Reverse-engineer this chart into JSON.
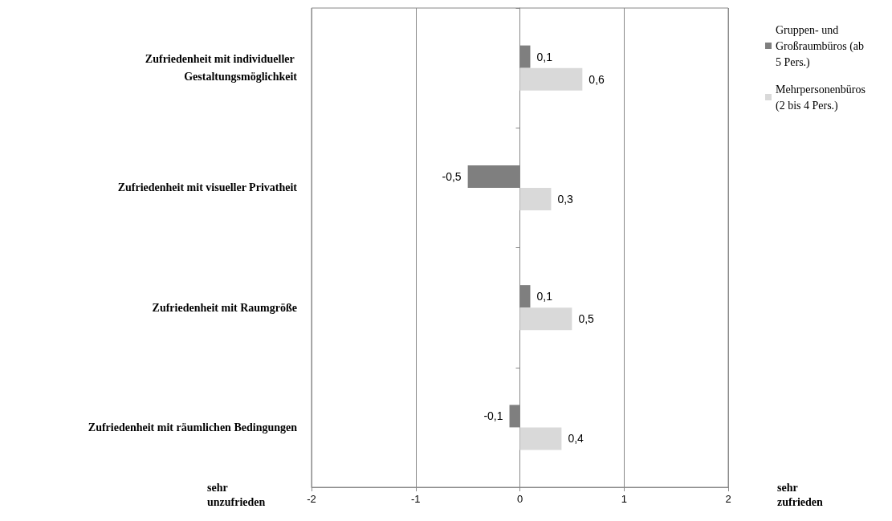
{
  "chart_data": {
    "type": "bar",
    "orientation": "horizontal",
    "categories": [
      "Zufriedenheit mit individueller Gestaltungsmöglichkeit",
      "Zufriedenheit mit visueller Privatheit",
      "Zufriedenheit mit Raumgröße",
      "Zufriedenheit mit räumlichen Bedingungen"
    ],
    "series": [
      {
        "name": "Gruppen- und Großraumbüros (ab 5 Pers.)",
        "color": "#7f7f7f",
        "values": [
          0.1,
          -0.5,
          0.1,
          -0.1
        ],
        "value_labels": [
          "0,1",
          "-0,5",
          "0,1",
          "-0,1"
        ]
      },
      {
        "name": "Mehrpersonenbüros (2 bis 4 Pers.)",
        "color": "#d9d9d9",
        "values": [
          0.6,
          0.3,
          0.5,
          0.4
        ],
        "value_labels": [
          "0,6",
          "0,3",
          "0,5",
          "0,4"
        ]
      }
    ],
    "xlim": [
      -2,
      2
    ],
    "xticks": [
      -2,
      -1,
      0,
      1,
      2
    ],
    "grid": "x",
    "legend": "top right",
    "annotations": [
      "sehr unzufrieden",
      "sehr zufrieden"
    ]
  }
}
